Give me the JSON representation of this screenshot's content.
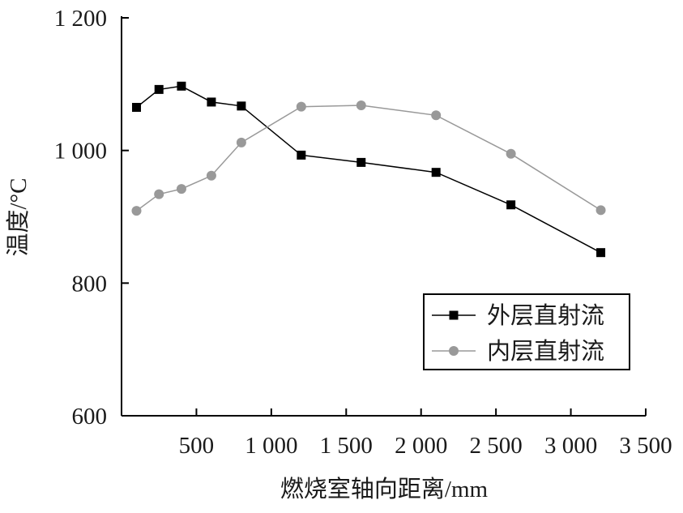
{
  "chart_data": {
    "type": "line",
    "title": "",
    "xlabel": "燃烧室轴向距离/mm",
    "ylabel": "温度/°C",
    "xlim": [
      0,
      3500
    ],
    "ylim": [
      600,
      1200
    ],
    "x_ticks": [
      500,
      1000,
      1500,
      2000,
      2500,
      3000,
      3500
    ],
    "x_tick_labels": [
      "500",
      "1 000",
      "1 500",
      "2 000",
      "2 500",
      "3 000",
      "3 500"
    ],
    "y_ticks": [
      600,
      800,
      1000,
      1200
    ],
    "y_tick_labels": [
      "600",
      "800",
      "1 000",
      "1 200"
    ],
    "grid": false,
    "legend_position": "inner-right",
    "series": [
      {
        "name": "外层直射流",
        "color": "#000000",
        "marker": "square",
        "x": [
          100,
          250,
          400,
          600,
          800,
          1200,
          1600,
          2100,
          2600,
          3200
        ],
        "y": [
          1065,
          1092,
          1097,
          1073,
          1067,
          993,
          982,
          967,
          918,
          846
        ]
      },
      {
        "name": "内层直射流",
        "color": "#999999",
        "marker": "circle",
        "x": [
          100,
          250,
          400,
          600,
          800,
          1200,
          1600,
          2100,
          2600,
          3200
        ],
        "y": [
          909,
          934,
          942,
          962,
          1012,
          1066,
          1068,
          1053,
          995,
          910
        ]
      }
    ]
  }
}
